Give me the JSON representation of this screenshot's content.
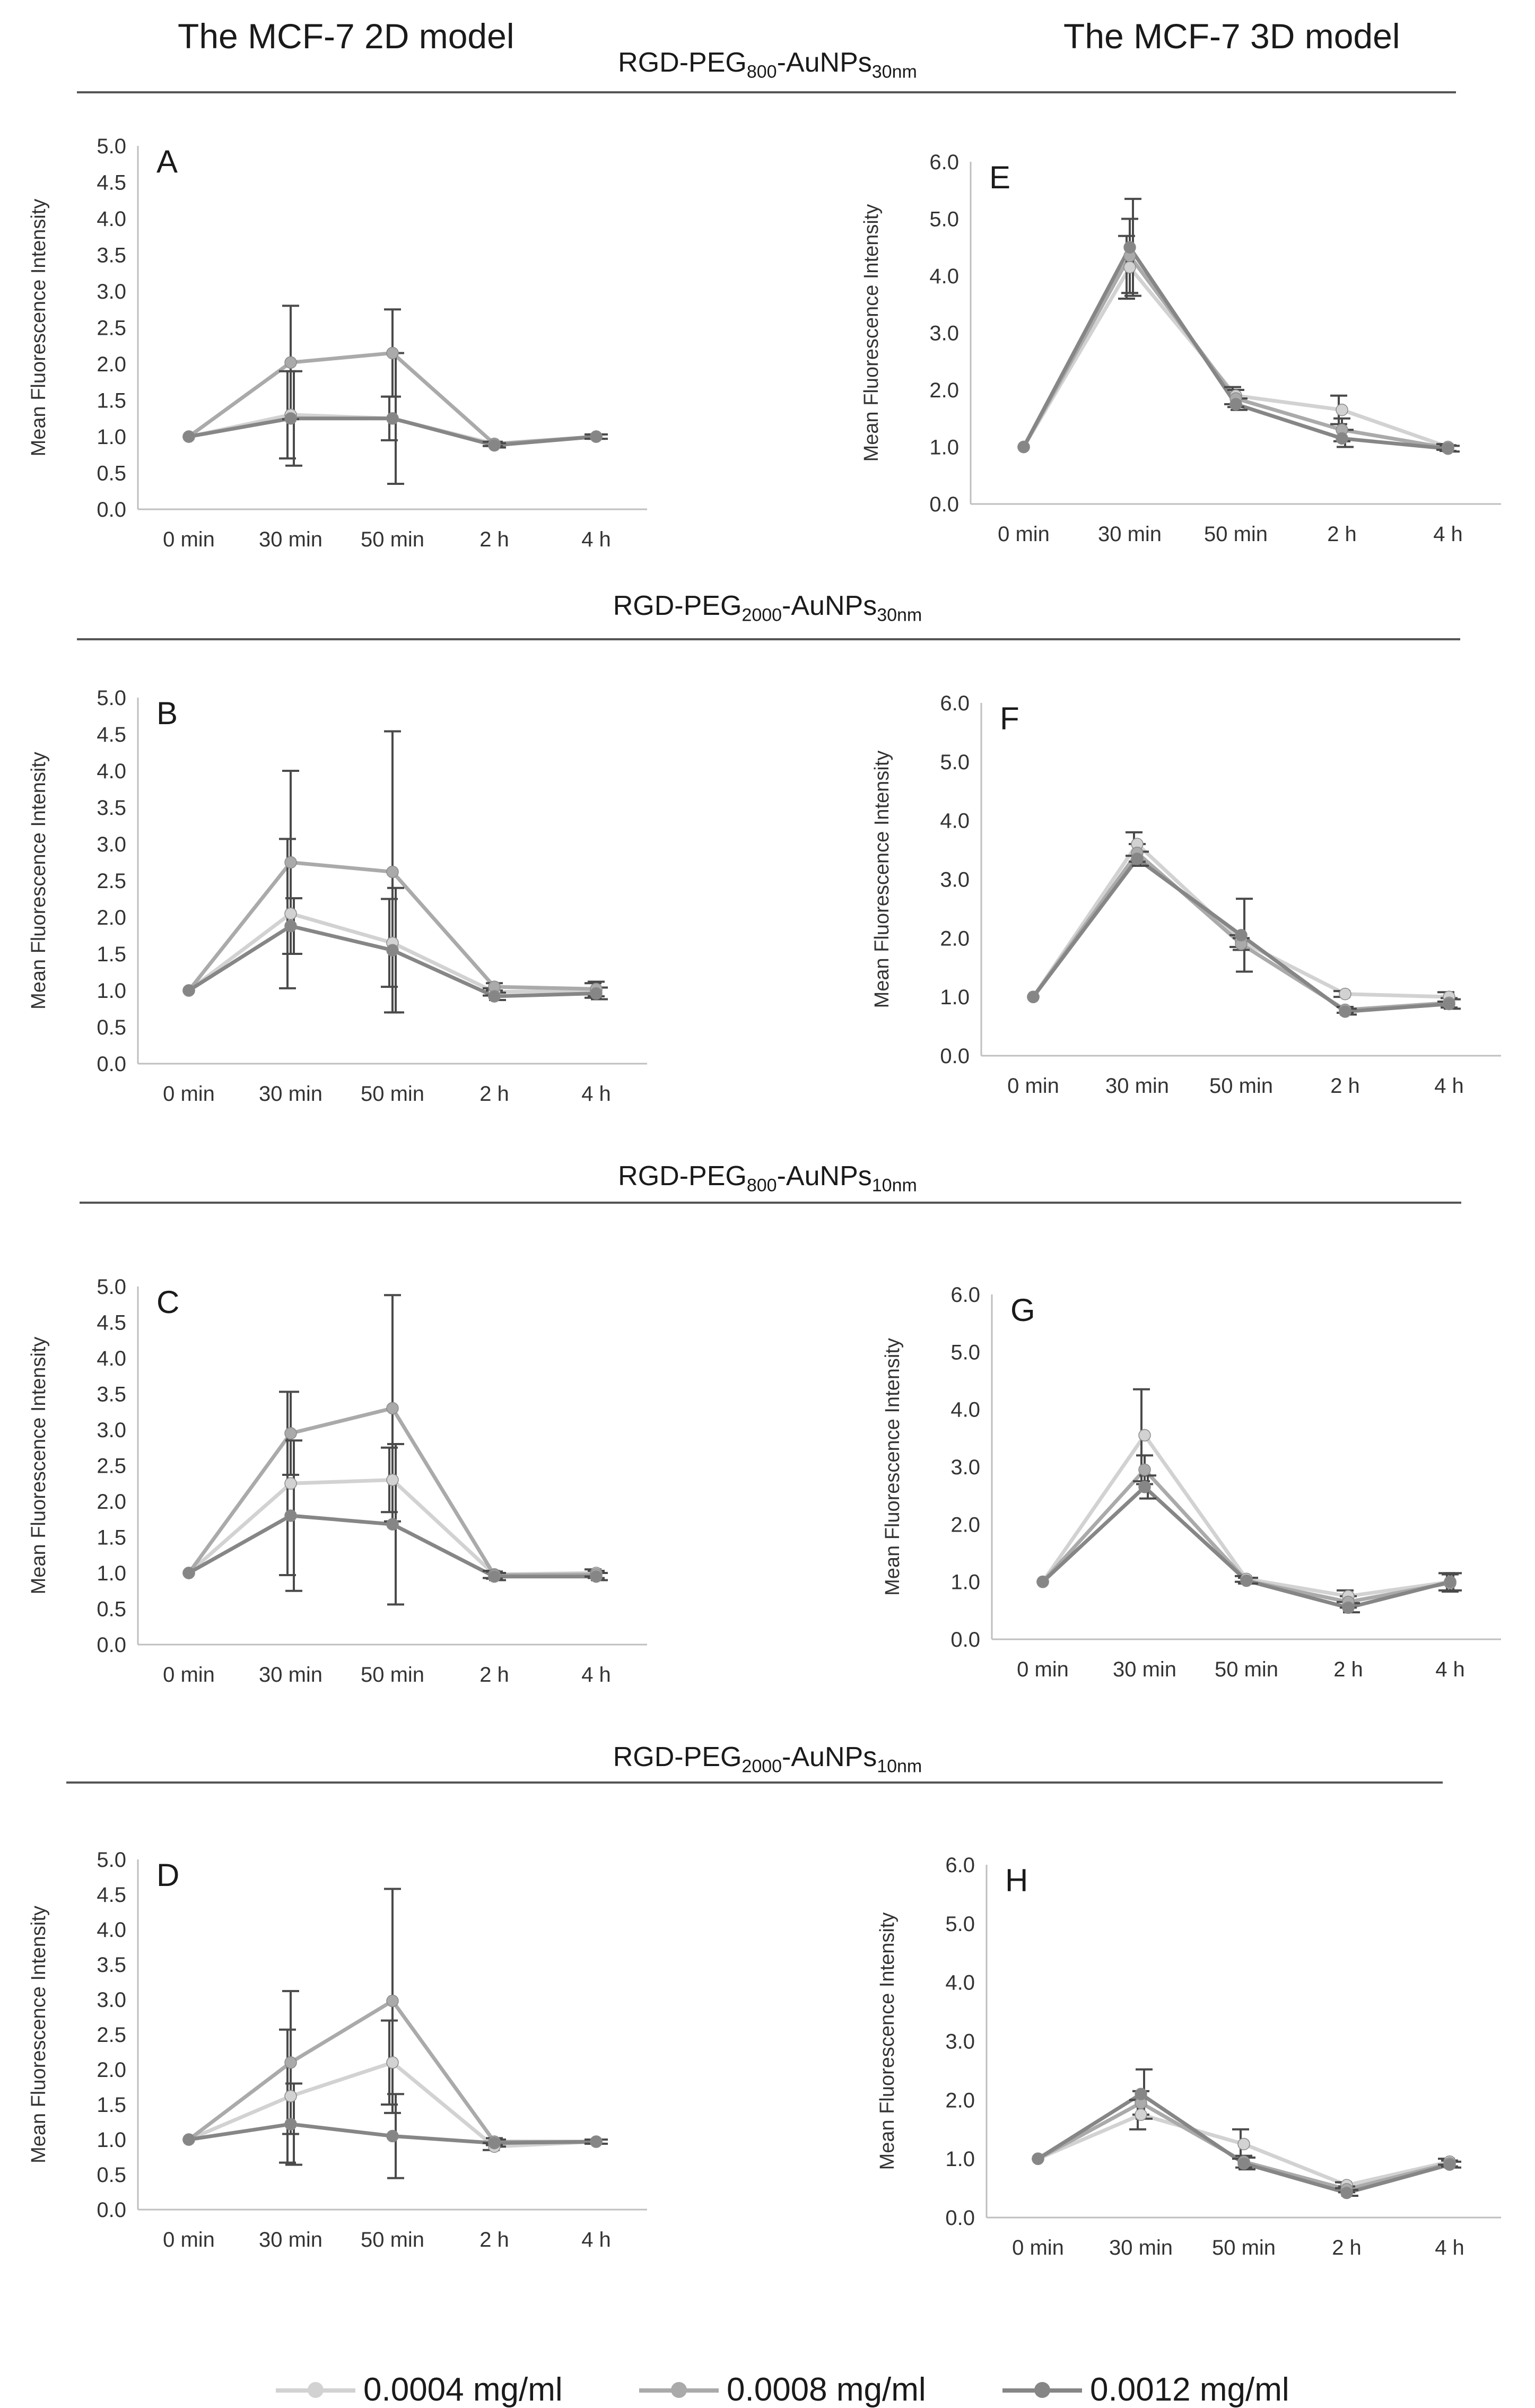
{
  "header": {
    "left_title": "The MCF-7 2D model",
    "right_title": "The MCF-7 3D model"
  },
  "sections": [
    {
      "prefix": "RGD-PEG",
      "sub1": "800",
      "mid": "-AuNPs",
      "sub2": "30nm"
    },
    {
      "prefix": "RGD-PEG",
      "sub1": "2000",
      "mid": "-AuNPs",
      "sub2": "30nm"
    },
    {
      "prefix": "RGD-PEG",
      "sub1": "800",
      "mid": "-AuNPs",
      "sub2": "10nm"
    },
    {
      "prefix": "RGD-PEG",
      "sub1": "2000",
      "mid": "-AuNPs",
      "sub2": "10nm"
    }
  ],
  "legend": [
    {
      "label": "0.0004 mg/ml",
      "color": "#d2d2d2"
    },
    {
      "label": "0.0008 mg/ml",
      "color": "#aaaaaa"
    },
    {
      "label": "0.0012 mg/ml",
      "color": "#868686"
    }
  ],
  "chart_data": [
    {
      "type": "line",
      "panel": "A",
      "ylabel": "Mean Fluorescence Intensity",
      "categories": [
        "0 min",
        "30 min",
        "50 min",
        "2 h",
        "4 h"
      ],
      "ylim": [
        0,
        5
      ],
      "yticks": [
        "0.0",
        "0.5",
        "1.0",
        "1.5",
        "2.0",
        "2.5",
        "3.0",
        "3.5",
        "4.0",
        "4.5",
        "5.0"
      ],
      "series": [
        {
          "name": "0.0004 mg/ml",
          "values": [
            1.0,
            1.3,
            1.25,
            0.9,
            1.0
          ],
          "err": [
            0,
            0.6,
            0.3,
            0.03,
            0.03
          ]
        },
        {
          "name": "0.0008 mg/ml",
          "values": [
            1.0,
            2.02,
            2.15,
            0.9,
            1.0
          ],
          "err": [
            0,
            0.78,
            0.6,
            0.03,
            0.03
          ]
        },
        {
          "name": "0.0012 mg/ml",
          "values": [
            1.0,
            1.25,
            1.25,
            0.88,
            1.0
          ],
          "err": [
            0,
            0.65,
            0.9,
            0.03,
            0.03
          ]
        }
      ]
    },
    {
      "type": "line",
      "panel": "B",
      "ylabel": "Mean Fluorescence Intensity",
      "categories": [
        "0 min",
        "30 min",
        "50 min",
        "2 h",
        "4 h"
      ],
      "ylim": [
        0,
        5
      ],
      "yticks": [
        "0.0",
        "0.5",
        "1.0",
        "1.5",
        "2.0",
        "2.5",
        "3.0",
        "3.5",
        "4.0",
        "4.5",
        "5.0"
      ],
      "series": [
        {
          "name": "0.0004 mg/ml",
          "values": [
            1.0,
            2.05,
            1.65,
            0.98,
            1.0
          ],
          "err": [
            0,
            1.02,
            0.6,
            0.05,
            0.1
          ]
        },
        {
          "name": "0.0008 mg/ml",
          "values": [
            1.0,
            2.75,
            2.62,
            1.05,
            1.02
          ],
          "err": [
            0,
            1.25,
            1.92,
            0.05,
            0.1
          ]
        },
        {
          "name": "0.0012 mg/ml",
          "values": [
            1.0,
            1.88,
            1.55,
            0.92,
            0.96
          ],
          "err": [
            0,
            0.38,
            0.85,
            0.05,
            0.08
          ]
        }
      ]
    },
    {
      "type": "line",
      "panel": "C",
      "ylabel": "Mean Fluorescence Intensity",
      "categories": [
        "0 min",
        "30 min",
        "50 min",
        "2 h",
        "4 h"
      ],
      "ylim": [
        0,
        5
      ],
      "yticks": [
        "0.0",
        "0.5",
        "1.0",
        "1.5",
        "2.0",
        "2.5",
        "3.0",
        "3.5",
        "4.0",
        "4.5",
        "5.0"
      ],
      "series": [
        {
          "name": "0.0004 mg/ml",
          "values": [
            1.0,
            2.25,
            2.3,
            0.98,
            1.0
          ],
          "err": [
            0,
            1.28,
            0.45,
            0.05,
            0.05
          ]
        },
        {
          "name": "0.0008 mg/ml",
          "values": [
            1.0,
            2.95,
            3.3,
            0.97,
            0.98
          ],
          "err": [
            0,
            0.58,
            1.58,
            0.05,
            0.05
          ]
        },
        {
          "name": "0.0012 mg/ml",
          "values": [
            1.0,
            1.8,
            1.68,
            0.95,
            0.95
          ],
          "err": [
            0,
            1.05,
            1.12,
            0.05,
            0.05
          ]
        }
      ]
    },
    {
      "type": "line",
      "panel": "D",
      "ylabel": "Mean Fluorescence Intensity",
      "categories": [
        "0 min",
        "30 min",
        "50 min",
        "2 h",
        "4 h"
      ],
      "ylim": [
        0,
        5
      ],
      "yticks": [
        "0.0",
        "0.5",
        "1.0",
        "1.5",
        "2.0",
        "2.5",
        "3.0",
        "3.5",
        "4.0",
        "4.5",
        "5.0"
      ],
      "series": [
        {
          "name": "0.0004 mg/ml",
          "values": [
            1.0,
            1.62,
            2.1,
            0.9,
            0.97
          ],
          "err": [
            0,
            0.95,
            0.6,
            0.05,
            0.03
          ]
        },
        {
          "name": "0.0008 mg/ml",
          "values": [
            1.0,
            2.1,
            2.98,
            0.97,
            0.97
          ],
          "err": [
            0,
            1.02,
            1.6,
            0.05,
            0.03
          ]
        },
        {
          "name": "0.0012 mg/ml",
          "values": [
            1.0,
            1.22,
            1.05,
            0.95,
            0.97
          ],
          "err": [
            0,
            0.58,
            0.6,
            0.05,
            0.03
          ]
        }
      ]
    },
    {
      "type": "line",
      "panel": "E",
      "ylabel": "Mean Fluorescence Intensity",
      "categories": [
        "0 min",
        "30 min",
        "50 min",
        "2 h",
        "4 h"
      ],
      "ylim": [
        0,
        6
      ],
      "yticks": [
        "0.0",
        "1.0",
        "2.0",
        "3.0",
        "4.0",
        "5.0",
        "6.0"
      ],
      "series": [
        {
          "name": "0.0004 mg/ml",
          "values": [
            1.0,
            4.15,
            1.9,
            1.65,
            1.0
          ],
          "err": [
            0,
            0.55,
            0.15,
            0.25,
            0.05
          ]
        },
        {
          "name": "0.0008 mg/ml",
          "values": [
            1.0,
            4.35,
            1.85,
            1.3,
            0.98
          ],
          "err": [
            0,
            0.65,
            0.15,
            0.2,
            0.05
          ]
        },
        {
          "name": "0.0012 mg/ml",
          "values": [
            1.0,
            4.5,
            1.75,
            1.15,
            0.97
          ],
          "err": [
            0,
            0.85,
            0.1,
            0.15,
            0.05
          ]
        }
      ]
    },
    {
      "type": "line",
      "panel": "F",
      "ylabel": "Mean Fluorescence Intensity",
      "categories": [
        "0 min",
        "30 min",
        "50 min",
        "2 h",
        "4 h"
      ],
      "ylim": [
        0,
        6
      ],
      "yticks": [
        "0.0",
        "1.0",
        "2.0",
        "3.0",
        "4.0",
        "5.0",
        "6.0"
      ],
      "series": [
        {
          "name": "0.0004 mg/ml",
          "values": [
            1.0,
            3.6,
            1.95,
            1.05,
            1.0
          ],
          "err": [
            0,
            0.2,
            0.1,
            0.05,
            0.08
          ]
        },
        {
          "name": "0.0008 mg/ml",
          "values": [
            1.0,
            3.45,
            1.9,
            0.78,
            0.9
          ],
          "err": [
            0,
            0.15,
            0.1,
            0.05,
            0.08
          ]
        },
        {
          "name": "0.0012 mg/ml",
          "values": [
            1.0,
            3.35,
            2.05,
            0.75,
            0.88
          ],
          "err": [
            0,
            0.12,
            0.62,
            0.05,
            0.08
          ]
        }
      ]
    },
    {
      "type": "line",
      "panel": "G",
      "ylabel": "Mean Fluorescence Intensity",
      "categories": [
        "0 min",
        "30 min",
        "50 min",
        "2 h",
        "4 h"
      ],
      "ylim": [
        0,
        6
      ],
      "yticks": [
        "0.0",
        "1.0",
        "2.0",
        "3.0",
        "4.0",
        "5.0",
        "6.0"
      ],
      "series": [
        {
          "name": "0.0004 mg/ml",
          "values": [
            1.0,
            3.55,
            1.05,
            0.75,
            1.0
          ],
          "err": [
            0,
            0.8,
            0.05,
            0.1,
            0.15
          ]
        },
        {
          "name": "0.0008 mg/ml",
          "values": [
            1.0,
            2.95,
            1.02,
            0.65,
            0.98
          ],
          "err": [
            0,
            0.25,
            0.05,
            0.1,
            0.15
          ]
        },
        {
          "name": "0.0012 mg/ml",
          "values": [
            1.0,
            2.65,
            1.02,
            0.55,
            1.0
          ],
          "err": [
            0,
            0.2,
            0.05,
            0.08,
            0.15
          ]
        }
      ]
    },
    {
      "type": "line",
      "panel": "H",
      "ylabel": "Mean Fluorescence Intensity",
      "categories": [
        "0 min",
        "30 min",
        "50 min",
        "2 h",
        "4 h"
      ],
      "ylim": [
        0,
        6
      ],
      "yticks": [
        "0.0",
        "1.0",
        "2.0",
        "3.0",
        "4.0",
        "5.0",
        "6.0"
      ],
      "series": [
        {
          "name": "0.0004 mg/ml",
          "values": [
            1.0,
            1.75,
            1.25,
            0.55,
            0.95
          ],
          "err": [
            0,
            0.25,
            0.25,
            0.05,
            0.05
          ]
        },
        {
          "name": "0.0008 mg/ml",
          "values": [
            1.0,
            1.95,
            0.95,
            0.48,
            0.92
          ],
          "err": [
            0,
            0.2,
            0.1,
            0.05,
            0.05
          ]
        },
        {
          "name": "0.0012 mg/ml",
          "values": [
            1.0,
            2.1,
            0.92,
            0.42,
            0.9
          ],
          "err": [
            0,
            0.42,
            0.1,
            0.05,
            0.05
          ]
        }
      ]
    }
  ]
}
